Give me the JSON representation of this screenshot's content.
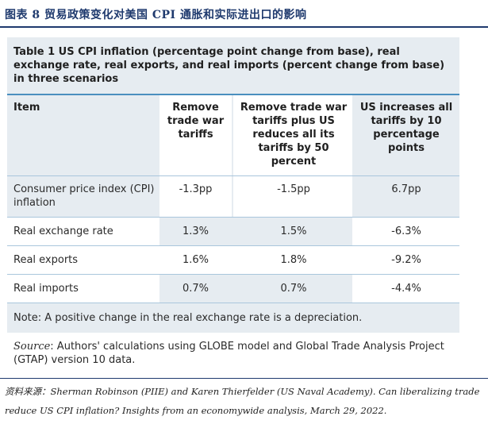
{
  "figure": {
    "title": "图表 8   贸易政策变化对美国 CPI 通胀和实际进出口的影响"
  },
  "table": {
    "title": "Table 1 US CPI inflation (percentage point change from base), real exchange rate, real exports, and real imports (percent change from base) in three scenarios",
    "headers": [
      "Item",
      "Remove trade war tariffs",
      "Remove trade war tariffs plus US reduces all its tariffs by 50 percent",
      "US increases all tariffs by 10 percentage points"
    ],
    "rows": [
      [
        "Consumer price index (CPI) inflation",
        "-1.3pp",
        "-1.5pp",
        "6.7pp"
      ],
      [
        "Real exchange rate",
        "1.3%",
        "1.5%",
        "-6.3%"
      ],
      [
        "Real exports",
        "1.6%",
        "1.8%",
        "-9.2%"
      ],
      [
        "Real imports",
        "0.7%",
        "0.7%",
        "-4.4%"
      ]
    ],
    "note": "Note: A positive change in the real exchange rate is a depreciation."
  },
  "source": {
    "label": "Source",
    "text": ": Authors' calculations using GLOBE model and Global Trade Analysis Project (GTAP) version 10 data."
  },
  "footnote": "资料来源：Sherman Robinson (PIIE) and Karen Thierfelder (US Naval Academy). Can liberalizing trade reduce US CPI inflation? Insights from an economywide analysis, March 29, 2022."
}
